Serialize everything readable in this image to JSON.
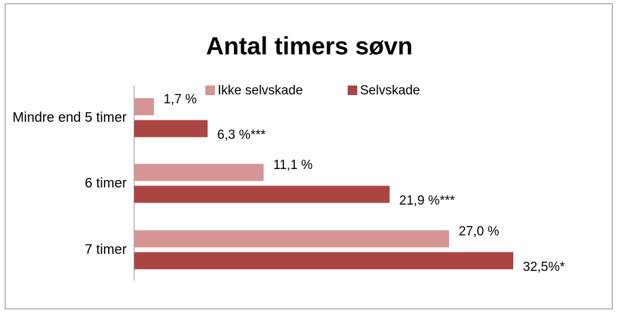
{
  "chart_data": {
    "type": "hbar",
    "title": "Antal timers søvn",
    "categories": [
      "Mindre end 5 timer",
      "6 timer",
      "7 timer"
    ],
    "series": [
      {
        "name": "Ikke selvskade",
        "color": "#d59594",
        "values": [
          1.7,
          11.1,
          27.0
        ],
        "value_labels": [
          "1,7 %",
          "11,1 %",
          "27,0 %"
        ]
      },
      {
        "name": "Selvskade",
        "color": "#ab4543",
        "values": [
          6.3,
          21.9,
          32.5
        ],
        "value_labels": [
          "6,3 %***",
          "21,9 %***",
          "32,5%*"
        ]
      }
    ]
  }
}
